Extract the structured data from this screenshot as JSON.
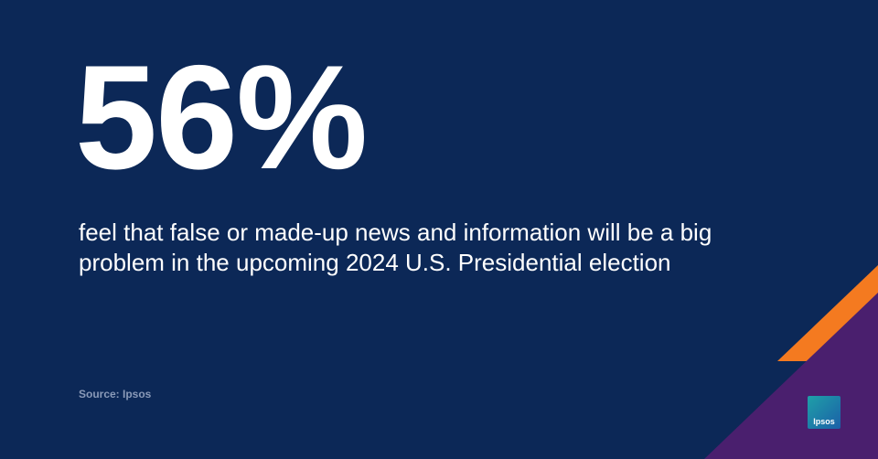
{
  "headline": "56%",
  "body": "feel that false or made-up news and information will be a big problem in the upcoming 2024 U.S. Presidential election",
  "source": "Source: Ipsos",
  "logo": "Ipsos"
}
